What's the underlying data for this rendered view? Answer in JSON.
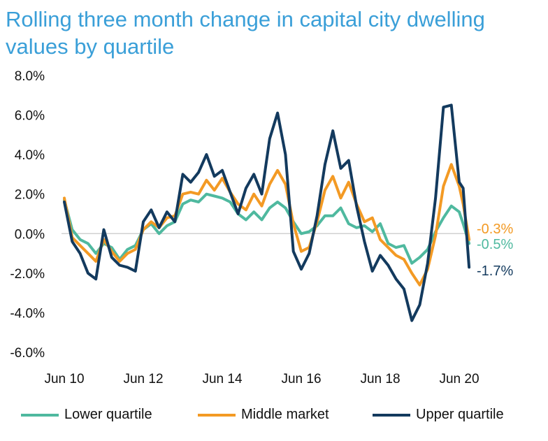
{
  "title": "Rolling three month change in capital city dwelling values by quartile",
  "chart_data": {
    "type": "line",
    "title": "Rolling three month change in capital city dwelling values by quartile",
    "xlabel": "",
    "ylabel": "",
    "xlim": [
      2010.33,
      2020.75
    ],
    "ylim": [
      -6,
      8
    ],
    "y_ticks": [
      "8.0%",
      "6.0%",
      "4.0%",
      "2.0%",
      "0.0%",
      "-2.0%",
      "-4.0%",
      "-6.0%"
    ],
    "y_tick_values": [
      8,
      6,
      4,
      2,
      0,
      -2,
      -4,
      -6
    ],
    "x_ticks": [
      "Jun 10",
      "Jun 12",
      "Jun 14",
      "Jun 16",
      "Jun 18",
      "Jun 20"
    ],
    "x_tick_values": [
      2010.5,
      2012.5,
      2014.5,
      2016.5,
      2018.5,
      2020.5
    ],
    "zero_line": true,
    "series": [
      {
        "name": "Lower quartile",
        "color": "#4fb99f",
        "end_label": "-0.5%",
        "points": [
          [
            2010.5,
            1.7
          ],
          [
            2010.7,
            0.2
          ],
          [
            2010.9,
            -0.3
          ],
          [
            2011.1,
            -0.5
          ],
          [
            2011.3,
            -1.0
          ],
          [
            2011.5,
            -0.5
          ],
          [
            2011.7,
            -0.7
          ],
          [
            2011.9,
            -1.3
          ],
          [
            2012.1,
            -0.8
          ],
          [
            2012.3,
            -0.6
          ],
          [
            2012.5,
            0.2
          ],
          [
            2012.7,
            0.5
          ],
          [
            2012.9,
            0.0
          ],
          [
            2013.1,
            0.4
          ],
          [
            2013.3,
            0.6
          ],
          [
            2013.5,
            1.5
          ],
          [
            2013.7,
            1.7
          ],
          [
            2013.9,
            1.6
          ],
          [
            2014.1,
            2.0
          ],
          [
            2014.3,
            1.9
          ],
          [
            2014.5,
            1.8
          ],
          [
            2014.7,
            1.6
          ],
          [
            2014.9,
            1.0
          ],
          [
            2015.1,
            0.7
          ],
          [
            2015.3,
            1.1
          ],
          [
            2015.5,
            0.7
          ],
          [
            2015.7,
            1.3
          ],
          [
            2015.9,
            1.6
          ],
          [
            2016.1,
            1.3
          ],
          [
            2016.3,
            0.6
          ],
          [
            2016.5,
            0.0
          ],
          [
            2016.7,
            0.1
          ],
          [
            2016.9,
            0.4
          ],
          [
            2017.1,
            0.9
          ],
          [
            2017.3,
            0.9
          ],
          [
            2017.5,
            1.3
          ],
          [
            2017.7,
            0.5
          ],
          [
            2017.9,
            0.3
          ],
          [
            2018.1,
            0.4
          ],
          [
            2018.3,
            0.1
          ],
          [
            2018.5,
            0.5
          ],
          [
            2018.7,
            -0.5
          ],
          [
            2018.9,
            -0.7
          ],
          [
            2019.1,
            -0.6
          ],
          [
            2019.3,
            -1.5
          ],
          [
            2019.5,
            -1.2
          ],
          [
            2019.7,
            -0.8
          ],
          [
            2019.9,
            0.1
          ],
          [
            2020.1,
            0.8
          ],
          [
            2020.3,
            1.4
          ],
          [
            2020.5,
            1.1
          ],
          [
            2020.6,
            0.5
          ],
          [
            2020.75,
            -0.5
          ]
        ]
      },
      {
        "name": "Middle market",
        "color": "#f39a24",
        "end_label": "-0.3%",
        "points": [
          [
            2010.5,
            1.8
          ],
          [
            2010.7,
            -0.2
          ],
          [
            2010.9,
            -0.6
          ],
          [
            2011.1,
            -1.0
          ],
          [
            2011.3,
            -1.4
          ],
          [
            2011.5,
            -0.3
          ],
          [
            2011.7,
            -0.9
          ],
          [
            2011.9,
            -1.4
          ],
          [
            2012.1,
            -1.0
          ],
          [
            2012.3,
            -0.8
          ],
          [
            2012.5,
            0.2
          ],
          [
            2012.7,
            0.6
          ],
          [
            2012.9,
            0.3
          ],
          [
            2013.1,
            0.8
          ],
          [
            2013.3,
            0.9
          ],
          [
            2013.5,
            2.0
          ],
          [
            2013.7,
            2.1
          ],
          [
            2013.9,
            2.0
          ],
          [
            2014.1,
            2.7
          ],
          [
            2014.3,
            2.2
          ],
          [
            2014.5,
            2.8
          ],
          [
            2014.7,
            2.1
          ],
          [
            2014.9,
            1.5
          ],
          [
            2015.1,
            1.2
          ],
          [
            2015.3,
            2.0
          ],
          [
            2015.5,
            1.4
          ],
          [
            2015.7,
            2.5
          ],
          [
            2015.9,
            3.2
          ],
          [
            2016.1,
            2.5
          ],
          [
            2016.3,
            0.5
          ],
          [
            2016.5,
            -0.9
          ],
          [
            2016.7,
            -0.7
          ],
          [
            2016.9,
            0.6
          ],
          [
            2017.1,
            2.2
          ],
          [
            2017.3,
            2.9
          ],
          [
            2017.5,
            1.8
          ],
          [
            2017.7,
            2.6
          ],
          [
            2017.9,
            1.5
          ],
          [
            2018.1,
            0.6
          ],
          [
            2018.3,
            0.8
          ],
          [
            2018.5,
            -0.3
          ],
          [
            2018.7,
            -0.7
          ],
          [
            2018.9,
            -1.1
          ],
          [
            2019.1,
            -1.3
          ],
          [
            2019.3,
            -2.0
          ],
          [
            2019.5,
            -2.6
          ],
          [
            2019.7,
            -1.8
          ],
          [
            2019.9,
            -0.1
          ],
          [
            2020.1,
            2.4
          ],
          [
            2020.3,
            3.5
          ],
          [
            2020.5,
            2.4
          ],
          [
            2020.6,
            1.5
          ],
          [
            2020.75,
            -0.3
          ]
        ]
      },
      {
        "name": "Upper quartile",
        "color": "#133a5e",
        "end_label": "-1.7%",
        "points": [
          [
            2010.5,
            1.6
          ],
          [
            2010.7,
            -0.4
          ],
          [
            2010.9,
            -1.0
          ],
          [
            2011.1,
            -2.0
          ],
          [
            2011.3,
            -2.3
          ],
          [
            2011.5,
            0.2
          ],
          [
            2011.7,
            -1.2
          ],
          [
            2011.9,
            -1.6
          ],
          [
            2012.1,
            -1.7
          ],
          [
            2012.3,
            -1.9
          ],
          [
            2012.5,
            0.6
          ],
          [
            2012.7,
            1.2
          ],
          [
            2012.9,
            0.3
          ],
          [
            2013.1,
            1.1
          ],
          [
            2013.3,
            0.6
          ],
          [
            2013.5,
            3.0
          ],
          [
            2013.7,
            2.6
          ],
          [
            2013.9,
            3.1
          ],
          [
            2014.1,
            4.0
          ],
          [
            2014.3,
            2.9
          ],
          [
            2014.5,
            3.2
          ],
          [
            2014.7,
            2.1
          ],
          [
            2014.9,
            1.0
          ],
          [
            2015.1,
            2.3
          ],
          [
            2015.3,
            3.0
          ],
          [
            2015.5,
            2.0
          ],
          [
            2015.7,
            4.8
          ],
          [
            2015.9,
            6.1
          ],
          [
            2016.1,
            4.0
          ],
          [
            2016.3,
            -0.9
          ],
          [
            2016.5,
            -1.8
          ],
          [
            2016.7,
            -1.0
          ],
          [
            2016.9,
            0.9
          ],
          [
            2017.1,
            3.5
          ],
          [
            2017.3,
            5.2
          ],
          [
            2017.5,
            3.3
          ],
          [
            2017.7,
            3.7
          ],
          [
            2017.9,
            1.4
          ],
          [
            2018.1,
            -0.4
          ],
          [
            2018.3,
            -1.9
          ],
          [
            2018.5,
            -1.1
          ],
          [
            2018.7,
            -1.6
          ],
          [
            2018.9,
            -2.3
          ],
          [
            2019.1,
            -2.8
          ],
          [
            2019.3,
            -4.4
          ],
          [
            2019.5,
            -3.6
          ],
          [
            2019.7,
            -1.5
          ],
          [
            2019.9,
            1.8
          ],
          [
            2020.1,
            6.4
          ],
          [
            2020.3,
            6.5
          ],
          [
            2020.5,
            2.6
          ],
          [
            2020.6,
            2.3
          ],
          [
            2020.75,
            -1.7
          ]
        ]
      }
    ]
  }
}
